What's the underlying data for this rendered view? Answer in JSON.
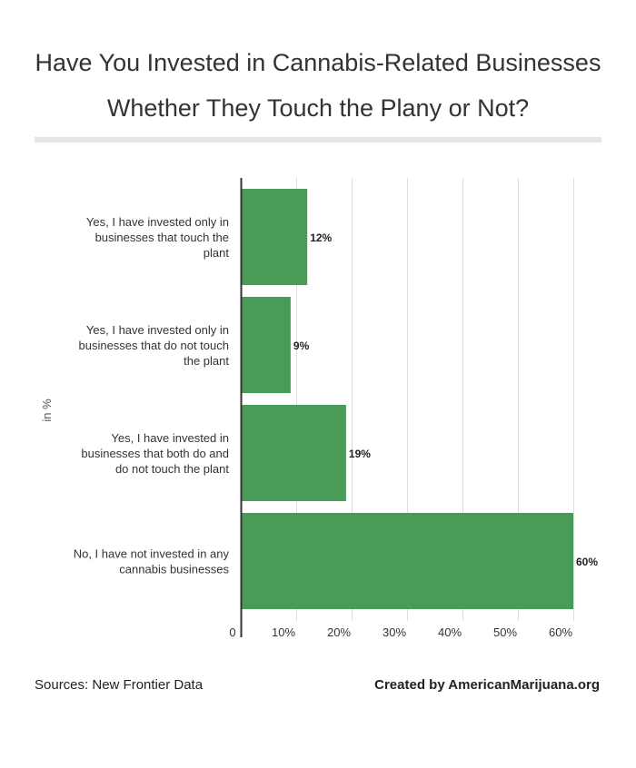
{
  "title_line1": "Have You Invested in Cannabis-Related Businesses",
  "title_line2": "Whether They Touch the Plany or Not?",
  "footer": {
    "source": "Sources:  New Frontier Data",
    "credit": "Created by AmericanMarijuana.org"
  },
  "colors": {
    "bar": "#4a9a58",
    "grid": "#dddddd",
    "axis": "#333333"
  },
  "chart_data": {
    "type": "bar",
    "orientation": "horizontal",
    "categories": [
      [
        "Yes, I have invested only in",
        "businesses that touch the",
        "plant"
      ],
      [
        "Yes, I have invested only in",
        "businesses that do not touch",
        "the plant"
      ],
      [
        "Yes, I have invested in",
        "businesses that both do and",
        "do not touch the plant"
      ],
      [
        "No, I have not invested in any",
        "cannabis businesses"
      ]
    ],
    "values": [
      12,
      9,
      19,
      60
    ],
    "value_labels": [
      "12%",
      "9%",
      "19%",
      "60%"
    ],
    "ylabel": "in %",
    "xlim": [
      0,
      60
    ],
    "ticks": [
      0,
      10,
      20,
      30,
      40,
      50,
      60
    ],
    "tick_labels": [
      "0",
      "10%",
      "20%",
      "30%",
      "40%",
      "50%",
      "60%"
    ],
    "grid": true,
    "legend": "none"
  }
}
